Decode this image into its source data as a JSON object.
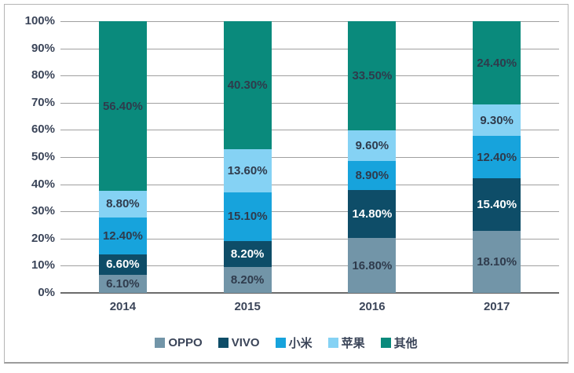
{
  "chart_data": {
    "type": "bar",
    "stacked": true,
    "normalized_to_100_percent": true,
    "title": "",
    "xlabel": "",
    "ylabel": "",
    "categories": [
      "2014",
      "2015",
      "2016",
      "2017"
    ],
    "series": [
      {
        "name": "OPPO",
        "color": "#7295A8",
        "label_color": "#2F3B4C",
        "values": [
          6.1,
          8.2,
          16.8,
          18.1
        ],
        "labels": [
          "6.10%",
          "8.20%",
          "16.80%",
          "18.10%"
        ]
      },
      {
        "name": "VIVO",
        "color": "#0E4D68",
        "label_color": "#FFFFFF",
        "values": [
          6.6,
          8.2,
          14.8,
          15.4
        ],
        "labels": [
          "6.60%",
          "8.20%",
          "14.80%",
          "15.40%"
        ]
      },
      {
        "name": "小米",
        "color": "#17A3DC",
        "label_color": "#2F3B4C",
        "values": [
          12.4,
          15.1,
          8.9,
          12.4
        ],
        "labels": [
          "12.40%",
          "15.10%",
          "8.90%",
          "12.40%"
        ]
      },
      {
        "name": "苹果",
        "color": "#85D2F4",
        "label_color": "#2F3B4C",
        "values": [
          8.8,
          13.6,
          9.6,
          9.3
        ],
        "labels": [
          "8.80%",
          "13.60%",
          "9.60%",
          "9.30%"
        ]
      },
      {
        "name": "其他",
        "color": "#0A8A7C",
        "label_color": "#2F3B4C",
        "values": [
          56.4,
          40.3,
          33.5,
          24.4
        ],
        "labels": [
          "56.40%",
          "40.30%",
          "33.50%",
          "24.40%"
        ]
      }
    ],
    "y_axis": {
      "min": 0,
      "max": 100,
      "tick_step": 10,
      "ticks": [
        "0%",
        "10%",
        "20%",
        "30%",
        "40%",
        "50%",
        "60%",
        "70%",
        "80%",
        "90%",
        "100%"
      ]
    },
    "grid": true,
    "legend": {
      "position": "bottom",
      "items": [
        "OPPO",
        "VIVO",
        "小米",
        "苹果",
        "其他"
      ]
    },
    "colors": {
      "gridline": "#a0a0a0",
      "axis_line": "#6b6b6b",
      "axis_text": "#3B4559",
      "frame_border": "#b5b5b5",
      "background": "#ffffff"
    }
  }
}
